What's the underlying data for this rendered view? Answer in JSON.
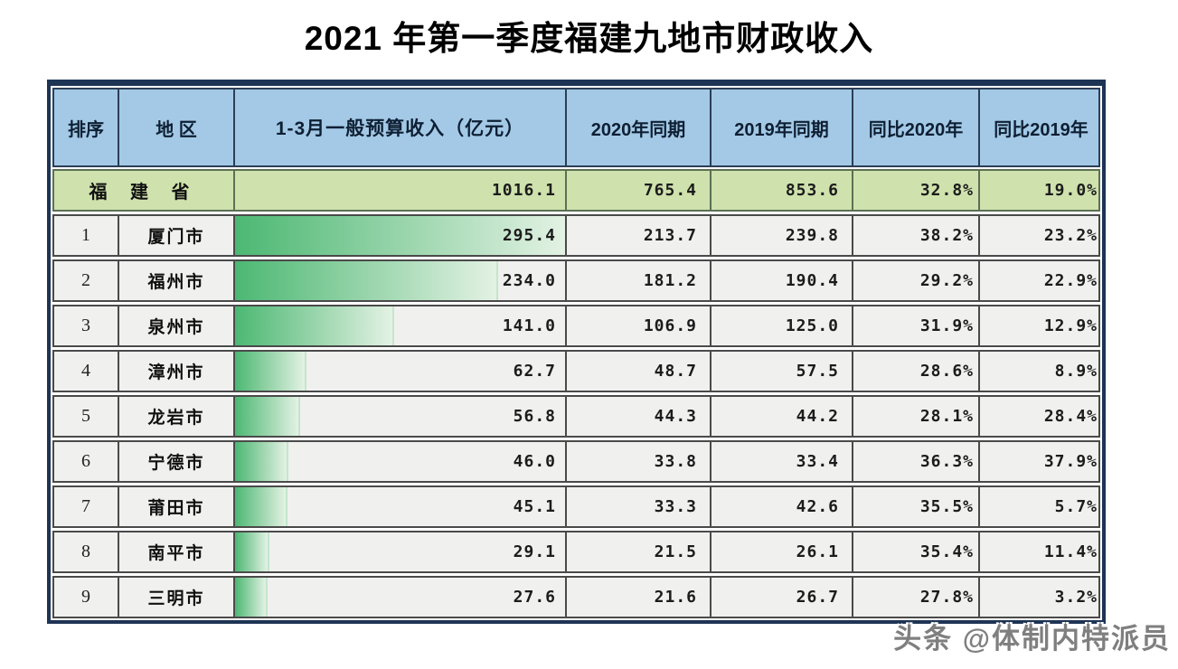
{
  "title": "2021 年第一季度福建九地市财政收入",
  "watermark": "头条 @体制内特派员",
  "colors": {
    "outer_border": "#1e3454",
    "header_bg": "#a3c9e6",
    "province_bg": "#cfe2ad",
    "row_bg": "#f0f0ef",
    "bar_gradient_start": "#4cb873",
    "bar_gradient_end": "#e3f2e4"
  },
  "table": {
    "headers": [
      "排序",
      "地 区",
      "1-3月一般预算收入（亿元）",
      "2020年同期",
      "2019年同期",
      "同比2020年",
      "同比2019年"
    ],
    "province": {
      "name": "福 建 省",
      "revenue": "1016.1",
      "prev2020": "765.4",
      "prev2019": "853.6",
      "yoy2020": "32.8%",
      "yoy2019": "19.0%"
    },
    "rows": [
      {
        "rank": "1",
        "city": "厦门市",
        "revenue": "295.4",
        "prev2020": "213.7",
        "prev2019": "239.8",
        "yoy2020": "38.2%",
        "yoy2019": "23.2%"
      },
      {
        "rank": "2",
        "city": "福州市",
        "revenue": "234.0",
        "prev2020": "181.2",
        "prev2019": "190.4",
        "yoy2020": "29.2%",
        "yoy2019": "22.9%"
      },
      {
        "rank": "3",
        "city": "泉州市",
        "revenue": "141.0",
        "prev2020": "106.9",
        "prev2019": "125.0",
        "yoy2020": "31.9%",
        "yoy2019": "12.9%"
      },
      {
        "rank": "4",
        "city": "漳州市",
        "revenue": "62.7",
        "prev2020": "48.7",
        "prev2019": "57.5",
        "yoy2020": "28.6%",
        "yoy2019": "8.9%"
      },
      {
        "rank": "5",
        "city": "龙岩市",
        "revenue": "56.8",
        "prev2020": "44.3",
        "prev2019": "44.2",
        "yoy2020": "28.1%",
        "yoy2019": "28.4%"
      },
      {
        "rank": "6",
        "city": "宁德市",
        "revenue": "46.0",
        "prev2020": "33.8",
        "prev2019": "33.4",
        "yoy2020": "36.3%",
        "yoy2019": "37.9%"
      },
      {
        "rank": "7",
        "city": "莆田市",
        "revenue": "45.1",
        "prev2020": "33.3",
        "prev2019": "42.6",
        "yoy2020": "35.5%",
        "yoy2019": "5.7%"
      },
      {
        "rank": "8",
        "city": "南平市",
        "revenue": "29.1",
        "prev2020": "21.5",
        "prev2019": "26.1",
        "yoy2020": "35.4%",
        "yoy2019": "11.4%"
      },
      {
        "rank": "9",
        "city": "三明市",
        "revenue": "27.6",
        "prev2020": "21.6",
        "prev2019": "26.7",
        "yoy2020": "27.8%",
        "yoy2019": "3.2%"
      }
    ]
  },
  "chart_data": {
    "type": "bar",
    "title": "2021 年第一季度福建九地市财政收入",
    "unit": "亿元",
    "categories": [
      "厦门市",
      "福州市",
      "泉州市",
      "漳州市",
      "龙岩市",
      "宁德市",
      "莆田市",
      "南平市",
      "三明市"
    ],
    "values": [
      295.4,
      234.0,
      141.0,
      62.7,
      56.8,
      46.0,
      45.1,
      29.1,
      27.6
    ],
    "bar_max": 295.4,
    "series": [
      {
        "name": "1-3月一般预算收入（亿元）",
        "values": [
          295.4,
          234.0,
          141.0,
          62.7,
          56.8,
          46.0,
          45.1,
          29.1,
          27.6
        ]
      },
      {
        "name": "2020年同期",
        "values": [
          213.7,
          181.2,
          106.9,
          48.7,
          44.3,
          33.8,
          33.3,
          21.5,
          21.6
        ]
      },
      {
        "name": "2019年同期",
        "values": [
          239.8,
          190.4,
          125.0,
          57.5,
          44.2,
          33.4,
          42.6,
          26.1,
          26.7
        ]
      },
      {
        "name": "同比2020年(%)",
        "values": [
          38.2,
          29.2,
          31.9,
          28.6,
          28.1,
          36.3,
          35.5,
          35.4,
          27.8
        ]
      },
      {
        "name": "同比2019年(%)",
        "values": [
          23.2,
          22.9,
          12.9,
          8.9,
          28.4,
          37.9,
          5.7,
          11.4,
          3.2
        ]
      }
    ],
    "province_total": {
      "name": "福建省",
      "revenue": 1016.1,
      "prev2020": 765.4,
      "prev2019": 853.6,
      "yoy2020_pct": 32.8,
      "yoy2019_pct": 19.0
    }
  }
}
